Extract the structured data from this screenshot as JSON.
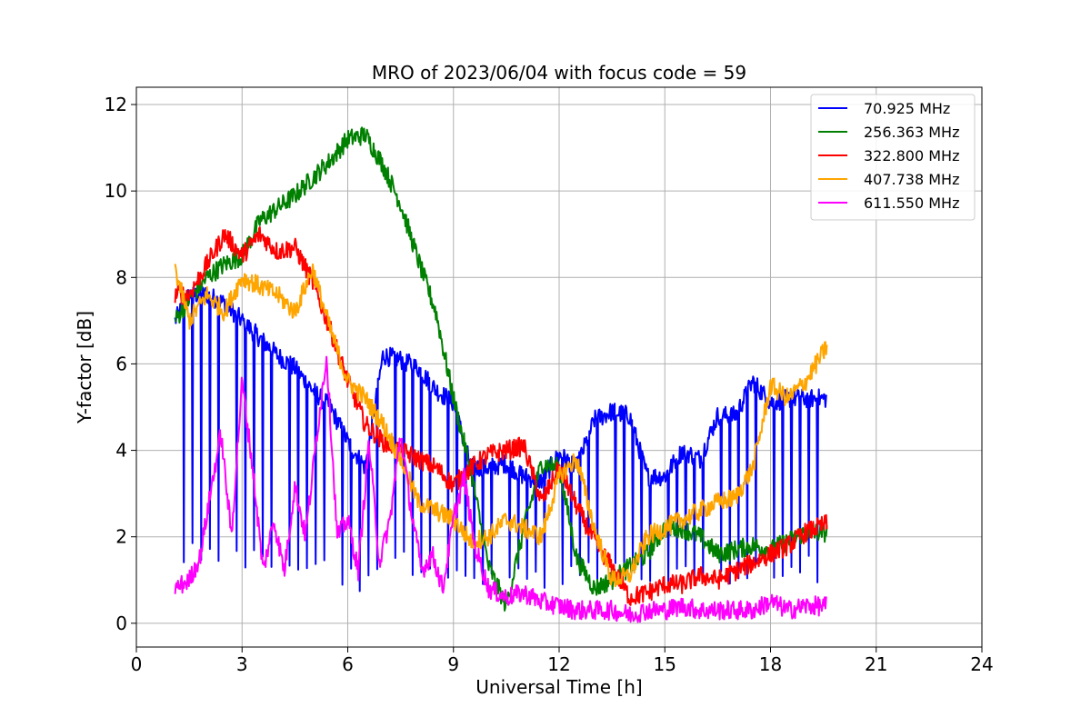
{
  "chart_data": {
    "type": "line",
    "title": "MRO of 2023/06/04 with focus code = 59",
    "xlabel": "Universal Time [h]",
    "ylabel": "Y-factor [dB]",
    "xlim": [
      0,
      24
    ],
    "ylim": [
      -0.55,
      12.4
    ],
    "xticks": [
      0,
      3,
      6,
      9,
      12,
      15,
      18,
      21,
      24
    ],
    "yticks": [
      0,
      2,
      4,
      6,
      8,
      10,
      12
    ],
    "grid": true,
    "legend_position": "top-right",
    "series": [
      {
        "name": " 70.925 MHz",
        "color": "#0000ff",
        "x": [
          1.1,
          1.5,
          2.0,
          2.5,
          3.0,
          3.5,
          4.0,
          4.5,
          5.0,
          5.5,
          6.0,
          6.5,
          7.0,
          7.5,
          8.0,
          8.5,
          9.0,
          9.5,
          10.0,
          10.5,
          11.0,
          11.5,
          12.0,
          12.5,
          13.0,
          13.5,
          14.0,
          14.5,
          15.0,
          15.5,
          16.0,
          16.5,
          17.0,
          17.5,
          18.0,
          18.5,
          19.0,
          19.6
        ],
        "y": [
          7.0,
          7.6,
          7.6,
          7.4,
          7.0,
          6.6,
          6.2,
          5.9,
          5.4,
          5.0,
          4.2,
          3.6,
          6.2,
          6.1,
          5.9,
          5.4,
          5.1,
          3.6,
          3.6,
          3.7,
          3.4,
          3.3,
          3.9,
          3.6,
          4.7,
          4.9,
          4.8,
          3.4,
          3.4,
          4.0,
          3.8,
          4.8,
          4.8,
          5.6,
          5.1,
          5.2,
          5.2,
          5.2
        ],
        "dip_interval": 0.25,
        "dip_floor": 0.2
      },
      {
        "name": "256.363 MHz",
        "color": "#008000",
        "x": [
          1.1,
          1.5,
          2.0,
          2.5,
          3.0,
          3.5,
          4.0,
          4.5,
          5.0,
          5.5,
          6.0,
          6.5,
          7.0,
          7.5,
          8.0,
          8.5,
          9.0,
          9.5,
          10.0,
          10.5,
          11.0,
          11.5,
          12.0,
          12.5,
          13.0,
          13.5,
          14.0,
          14.5,
          15.0,
          15.5,
          16.0,
          16.5,
          17.0,
          17.5,
          18.0,
          18.5,
          19.0,
          19.6
        ],
        "y": [
          7.0,
          7.5,
          8.0,
          8.3,
          8.5,
          9.3,
          9.6,
          9.9,
          10.3,
          10.7,
          11.2,
          11.3,
          10.6,
          9.7,
          8.4,
          7.2,
          5.2,
          3.5,
          1.3,
          0.4,
          2.2,
          3.7,
          3.6,
          1.5,
          0.8,
          1.0,
          1.3,
          1.6,
          2.2,
          2.2,
          2.0,
          1.6,
          1.7,
          1.8,
          1.7,
          1.9,
          2.1,
          2.1
        ],
        "dip_interval": 0,
        "dip_floor": 0
      },
      {
        "name": "322.800 MHz",
        "color": "#ff0000",
        "x": [
          1.1,
          1.5,
          2.0,
          2.5,
          3.0,
          3.5,
          4.0,
          4.5,
          5.0,
          5.5,
          6.0,
          6.5,
          7.0,
          7.5,
          8.0,
          8.5,
          9.0,
          9.5,
          10.0,
          10.5,
          11.0,
          11.5,
          12.0,
          12.5,
          13.0,
          13.5,
          14.0,
          14.5,
          15.0,
          15.5,
          16.0,
          16.5,
          17.0,
          17.5,
          18.0,
          18.5,
          19.0,
          19.6
        ],
        "y": [
          7.6,
          7.6,
          8.3,
          9.0,
          8.5,
          9.0,
          8.6,
          8.7,
          7.9,
          6.8,
          5.6,
          4.6,
          4.2,
          4.0,
          3.8,
          3.6,
          3.2,
          3.6,
          3.9,
          4.0,
          4.1,
          2.8,
          3.6,
          2.7,
          1.9,
          1.3,
          0.6,
          0.7,
          0.9,
          0.9,
          1.1,
          1.0,
          1.2,
          1.4,
          1.6,
          1.8,
          2.1,
          2.3
        ],
        "dip_interval": 0,
        "dip_floor": 0
      },
      {
        "name": "407.738 MHz",
        "color": "#ffa500",
        "x": [
          1.1,
          1.5,
          2.0,
          2.5,
          3.0,
          3.5,
          4.0,
          4.5,
          5.0,
          5.5,
          6.0,
          6.5,
          7.0,
          7.5,
          8.0,
          8.5,
          9.0,
          9.5,
          10.0,
          10.5,
          11.0,
          11.5,
          12.0,
          12.5,
          13.0,
          13.5,
          14.0,
          14.5,
          15.0,
          15.5,
          16.0,
          16.5,
          17.0,
          17.5,
          18.0,
          18.5,
          19.0,
          19.6
        ],
        "y": [
          8.2,
          7.0,
          7.6,
          7.2,
          8.0,
          7.8,
          7.6,
          7.2,
          8.2,
          6.8,
          5.6,
          5.2,
          4.6,
          3.8,
          2.8,
          2.6,
          2.4,
          1.9,
          2.0,
          2.4,
          2.2,
          2.0,
          3.4,
          3.8,
          2.2,
          1.0,
          1.1,
          2.0,
          2.2,
          2.4,
          2.6,
          2.8,
          2.9,
          3.6,
          5.5,
          5.2,
          5.6,
          6.4
        ],
        "dip_interval": 0,
        "dip_floor": 0
      },
      {
        "name": "611.550 MHz",
        "color": "#ff00ff",
        "x": [
          1.1,
          1.5,
          1.8,
          2.1,
          2.4,
          2.7,
          3.0,
          3.3,
          3.6,
          3.9,
          4.2,
          4.5,
          4.8,
          5.1,
          5.4,
          5.7,
          6.0,
          6.3,
          6.6,
          6.9,
          7.2,
          7.5,
          7.8,
          8.1,
          8.4,
          8.7,
          9.0,
          9.3,
          9.6,
          10.0,
          10.5,
          11.0,
          11.5,
          12.0,
          12.5,
          13.0,
          13.5,
          14.0,
          14.5,
          15.0,
          15.5,
          16.0,
          16.5,
          17.0,
          17.5,
          18.0,
          18.5,
          19.0,
          19.6
        ],
        "y": [
          0.8,
          1.0,
          1.5,
          3.0,
          4.4,
          2.0,
          5.6,
          3.6,
          1.2,
          2.4,
          1.2,
          3.2,
          2.0,
          4.2,
          6.2,
          2.0,
          2.4,
          1.2,
          4.2,
          1.4,
          2.4,
          4.4,
          2.6,
          1.2,
          1.6,
          0.8,
          2.4,
          3.4,
          1.8,
          0.8,
          0.6,
          0.7,
          0.5,
          0.4,
          0.3,
          0.3,
          0.3,
          0.2,
          0.3,
          0.3,
          0.4,
          0.3,
          0.3,
          0.3,
          0.3,
          0.5,
          0.3,
          0.4,
          0.4
        ],
        "dip_interval": 0,
        "dip_floor": 0
      }
    ]
  }
}
